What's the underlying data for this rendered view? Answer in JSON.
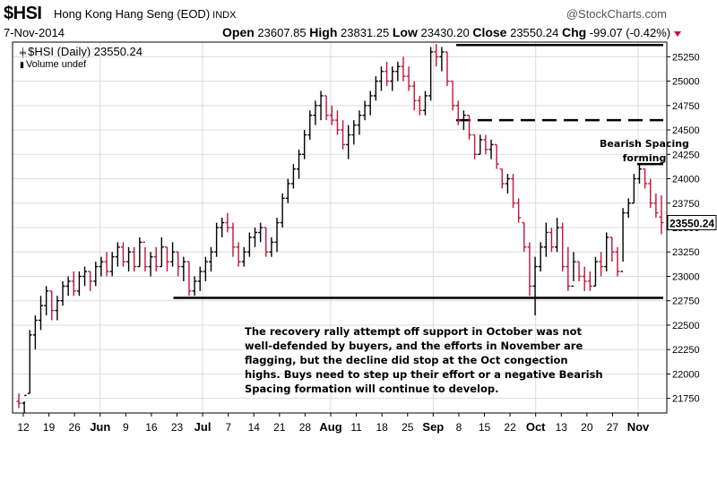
{
  "header": {
    "symbol": "$HSI",
    "name": "Hong Kong Hang Seng (EOD)",
    "exchange": "INDX",
    "brand": "@StockCharts.com",
    "date": "7-Nov-2014",
    "open_label": "Open",
    "open": "23607.85",
    "high_label": "High",
    "high": "23831.25",
    "low_label": "Low",
    "low": "23430.20",
    "close_label": "Close",
    "close": "23550.24",
    "chg_label": "Chg",
    "chg": "-99.07 (-0.42%)"
  },
  "legend": {
    "series": "$HSI (Daily) 23550.24",
    "volume": "Volume undef"
  },
  "annotations": {
    "commentary": "The recovery rally attempt off support in October was not well-defended by buyers, and the efforts in November are flagging, but the decline did stop at the Oct congection highs. Buys need to step up their effort or a negative Bearish Spacing formation will continue to develop.",
    "bearish_line1": "Bearish Spacing",
    "bearish_line2": "forming"
  },
  "colors": {
    "up": "#000000",
    "down": "#c0143c",
    "grid": "#dcdcdc"
  },
  "chart_data": {
    "type": "ohlc",
    "title": "$HSI Hong Kong Hang Seng (EOD)",
    "y_ticks": [
      21750,
      22000,
      22250,
      22500,
      22750,
      23000,
      23250,
      23500,
      23750,
      24000,
      24250,
      24500,
      24750,
      25000,
      25250
    ],
    "ylim": [
      21600,
      25400
    ],
    "last_value_label": "23550.24",
    "x_tick_labels": [
      {
        "label": "12",
        "bold": false
      },
      {
        "label": "19",
        "bold": false
      },
      {
        "label": "26",
        "bold": false
      },
      {
        "label": "Jun",
        "bold": true
      },
      {
        "label": "9",
        "bold": false
      },
      {
        "label": "16",
        "bold": false
      },
      {
        "label": "23",
        "bold": false
      },
      {
        "label": "Jul",
        "bold": true
      },
      {
        "label": "7",
        "bold": false
      },
      {
        "label": "14",
        "bold": false
      },
      {
        "label": "21",
        "bold": false
      },
      {
        "label": "28",
        "bold": false
      },
      {
        "label": "Aug",
        "bold": true
      },
      {
        "label": "11",
        "bold": false
      },
      {
        "label": "18",
        "bold": false
      },
      {
        "label": "25",
        "bold": false
      },
      {
        "label": "Sep",
        "bold": true
      },
      {
        "label": "8",
        "bold": false
      },
      {
        "label": "15",
        "bold": false
      },
      {
        "label": "22",
        "bold": false
      },
      {
        "label": "Oct",
        "bold": true
      },
      {
        "label": "13",
        "bold": false
      },
      {
        "label": "20",
        "bold": false
      },
      {
        "label": "27",
        "bold": false
      },
      {
        "label": "Nov",
        "bold": true
      }
    ],
    "horizontal_levels": [
      {
        "name": "support",
        "value": 22780,
        "style": "solid",
        "from": "Jun 23",
        "to": "Nov 7"
      },
      {
        "name": "resistance-top",
        "value": 25370,
        "style": "solid",
        "from": "Sep 8",
        "to": "Nov 7"
      },
      {
        "name": "gap-level",
        "value": 24600,
        "style": "dashed",
        "from": "Sep 8",
        "to": "Nov 7"
      },
      {
        "name": "bearish-spacing",
        "value": 24150,
        "style": "solid",
        "from": "Nov 3",
        "to": "Nov 7"
      }
    ],
    "bars": [
      [
        21800,
        21650,
        21720,
        21700
      ],
      [
        21720,
        21600,
        21700,
        21780
      ],
      [
        22450,
        21800,
        21800,
        22400
      ],
      [
        22600,
        22250,
        22400,
        22550
      ],
      [
        22800,
        22450,
        22550,
        22700
      ],
      [
        22900,
        22600,
        22700,
        22850
      ],
      [
        22850,
        22550,
        22850,
        22650
      ],
      [
        22800,
        22550,
        22650,
        22750
      ],
      [
        22950,
        22700,
        22750,
        22900
      ],
      [
        23000,
        22800,
        22900,
        22950
      ],
      [
        23050,
        22800,
        22950,
        22850
      ],
      [
        23050,
        22800,
        22850,
        23000
      ],
      [
        23100,
        22900,
        23000,
        23050
      ],
      [
        23050,
        22850,
        23050,
        22950
      ],
      [
        23150,
        22900,
        22950,
        23100
      ],
      [
        23200,
        23000,
        23100,
        23150
      ],
      [
        23250,
        23000,
        23150,
        23050
      ],
      [
        23250,
        23000,
        23050,
        23200
      ],
      [
        23350,
        23100,
        23200,
        23300
      ],
      [
        23350,
        23100,
        23300,
        23150
      ],
      [
        23300,
        23050,
        23150,
        23250
      ],
      [
        23300,
        23050,
        23250,
        23100
      ],
      [
        23400,
        23100,
        23100,
        23350
      ],
      [
        23300,
        23050,
        23350,
        23100
      ],
      [
        23250,
        23000,
        23100,
        23200
      ],
      [
        23300,
        23050,
        23200,
        23100
      ],
      [
        23400,
        23100,
        23100,
        23300
      ],
      [
        23300,
        23050,
        23300,
        23150
      ],
      [
        23350,
        23100,
        23150,
        23250
      ],
      [
        23250,
        23000,
        23250,
        23100
      ],
      [
        23200,
        22950,
        23100,
        23150
      ],
      [
        23150,
        22800,
        23150,
        22850
      ],
      [
        23000,
        22800,
        22850,
        22950
      ],
      [
        23100,
        22850,
        22950,
        23050
      ],
      [
        23200,
        22950,
        23050,
        23150
      ],
      [
        23300,
        23050,
        23150,
        23250
      ],
      [
        23550,
        23200,
        23250,
        23500
      ],
      [
        23600,
        23400,
        23500,
        23550
      ],
      [
        23650,
        23450,
        23550,
        23500
      ],
      [
        23550,
        23200,
        23500,
        23300
      ],
      [
        23350,
        23100,
        23300,
        23150
      ],
      [
        23300,
        23100,
        23150,
        23250
      ],
      [
        23450,
        23200,
        23250,
        23400
      ],
      [
        23500,
        23300,
        23400,
        23450
      ],
      [
        23550,
        23350,
        23450,
        23500
      ],
      [
        23500,
        23200,
        23500,
        23250
      ],
      [
        23400,
        23200,
        23250,
        23350
      ],
      [
        23600,
        23250,
        23350,
        23550
      ],
      [
        23850,
        23500,
        23550,
        23800
      ],
      [
        24000,
        23750,
        23800,
        23950
      ],
      [
        24150,
        23900,
        23950,
        24100
      ],
      [
        24300,
        24000,
        24100,
        24250
      ],
      [
        24500,
        24200,
        24250,
        24450
      ],
      [
        24700,
        24400,
        24450,
        24650
      ],
      [
        24800,
        24550,
        24650,
        24750
      ],
      [
        24900,
        24600,
        24750,
        24850
      ],
      [
        24850,
        24600,
        24850,
        24650
      ],
      [
        24750,
        24550,
        24650,
        24600
      ],
      [
        24700,
        24450,
        24600,
        24500
      ],
      [
        24600,
        24300,
        24500,
        24350
      ],
      [
        24550,
        24200,
        24350,
        24450
      ],
      [
        24600,
        24350,
        24450,
        24550
      ],
      [
        24700,
        24450,
        24550,
        24650
      ],
      [
        24800,
        24600,
        24650,
        24750
      ],
      [
        24900,
        24650,
        24750,
        24850
      ],
      [
        25050,
        24800,
        24850,
        25000
      ],
      [
        25150,
        24900,
        25000,
        25100
      ],
      [
        25200,
        24950,
        25100,
        25000
      ],
      [
        25150,
        24900,
        25000,
        25100
      ],
      [
        25200,
        25000,
        25100,
        25150
      ],
      [
        25250,
        25000,
        25150,
        25050
      ],
      [
        25150,
        24900,
        25050,
        24950
      ],
      [
        25000,
        24700,
        24950,
        24800
      ],
      [
        24850,
        24650,
        24800,
        24700
      ],
      [
        24900,
        24650,
        24700,
        24850
      ],
      [
        25350,
        24800,
        24850,
        25300
      ],
      [
        25380,
        25150,
        25300,
        25250
      ],
      [
        25350,
        25100,
        25250,
        25300
      ],
      [
        25300,
        24950,
        25300,
        25000
      ],
      [
        25000,
        24700,
        25000,
        24750
      ],
      [
        24800,
        24550,
        24750,
        24600
      ],
      [
        24700,
        24500,
        24600,
        24650
      ],
      [
        24650,
        24400,
        24650,
        24450
      ],
      [
        24450,
        24200,
        24450,
        24250
      ],
      [
        24450,
        24250,
        24250,
        24400
      ],
      [
        24450,
        24250,
        24400,
        24300
      ],
      [
        24400,
        24200,
        24300,
        24350
      ],
      [
        24350,
        24100,
        24350,
        24150
      ],
      [
        24100,
        23900,
        24100,
        23950
      ],
      [
        24050,
        23850,
        23950,
        24000
      ],
      [
        24050,
        23700,
        24000,
        23750
      ],
      [
        23800,
        23550,
        23750,
        23600
      ],
      [
        23550,
        23250,
        23550,
        23300
      ],
      [
        23350,
        22800,
        23300,
        22900
      ],
      [
        23200,
        22600,
        22900,
        23100
      ],
      [
        23350,
        23050,
        23100,
        23300
      ],
      [
        23550,
        23200,
        23300,
        23450
      ],
      [
        23500,
        23250,
        23450,
        23300
      ],
      [
        23600,
        23250,
        23300,
        23500
      ],
      [
        23550,
        23050,
        23500,
        23100
      ],
      [
        23300,
        22850,
        23100,
        22900
      ],
      [
        23250,
        22950,
        22900,
        23150
      ],
      [
        23150,
        22950,
        23150,
        23000
      ],
      [
        23100,
        22850,
        23000,
        22950
      ],
      [
        23050,
        22850,
        22950,
        22900
      ],
      [
        23200,
        22900,
        22900,
        23150
      ],
      [
        23250,
        23000,
        23150,
        23100
      ],
      [
        23450,
        23050,
        23100,
        23400
      ],
      [
        23400,
        23150,
        23400,
        23250
      ],
      [
        23300,
        23000,
        23250,
        23050
      ],
      [
        23700,
        23150,
        23050,
        23650
      ],
      [
        23800,
        23600,
        23650,
        23750
      ],
      [
        24050,
        23750,
        23750,
        24000
      ],
      [
        24150,
        23950,
        24000,
        24100
      ],
      [
        24100,
        23900,
        24100,
        23950
      ],
      [
        24000,
        23700,
        23950,
        23750
      ],
      [
        23850,
        23600,
        23750,
        23650
      ],
      [
        23831.25,
        23430.2,
        23607.85,
        23550.24
      ]
    ]
  }
}
